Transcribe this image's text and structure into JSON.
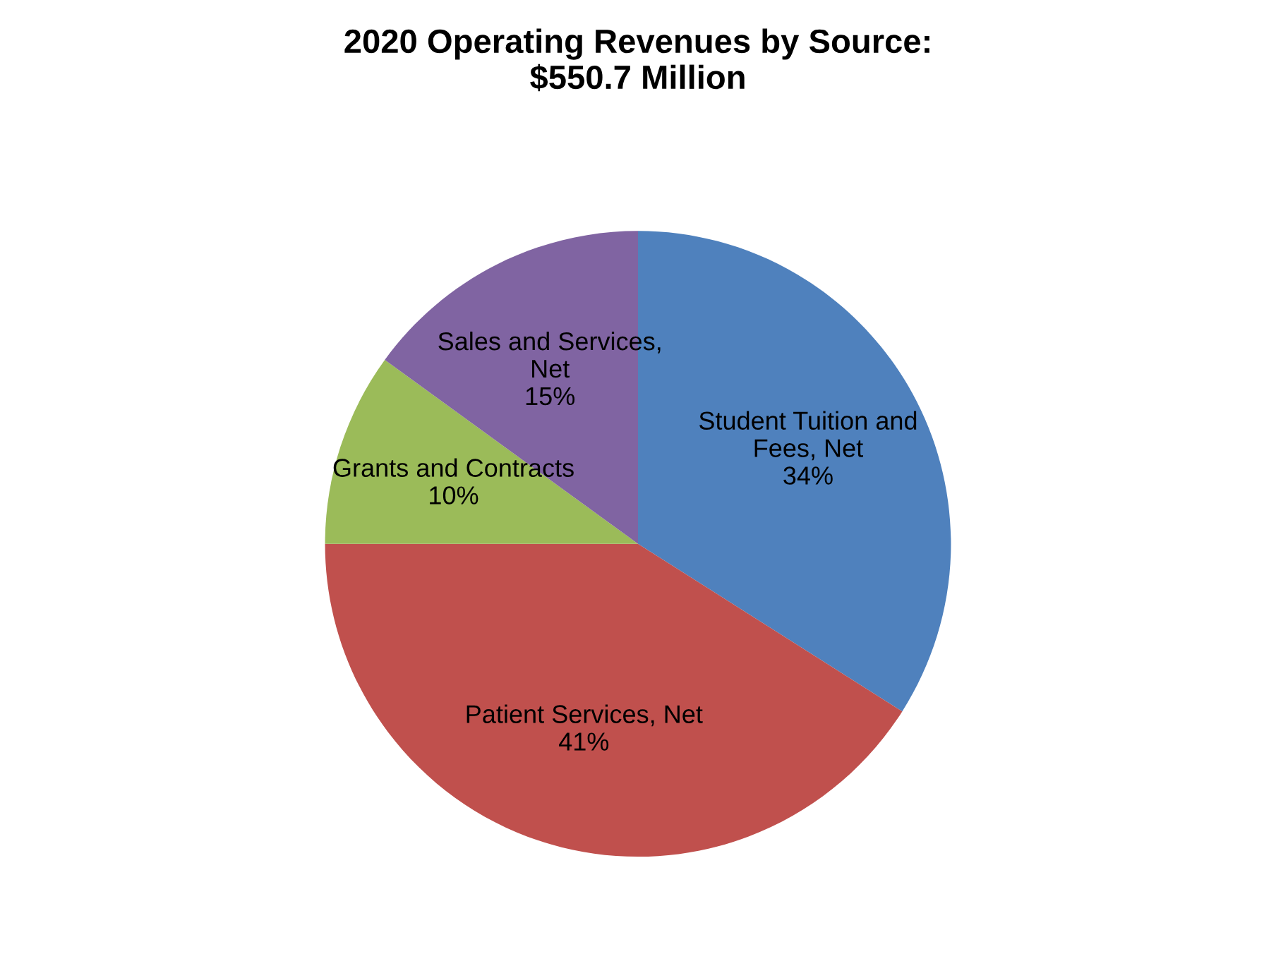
{
  "chart_data": {
    "type": "pie",
    "title": "2020 Operating Revenues by Source:\n$550.7 Million",
    "categories": [
      "Student Tuition and\nFees, Net",
      "Patient Services, Net",
      "Grants and Contracts",
      "Sales and Services,\nNet"
    ],
    "values": [
      34,
      41,
      10,
      15
    ],
    "value_labels": [
      "34%",
      "41%",
      "10%",
      "15%"
    ],
    "colors": [
      "#4f81bd",
      "#c0504d",
      "#9bbb59",
      "#8064a2"
    ],
    "legend": false
  }
}
